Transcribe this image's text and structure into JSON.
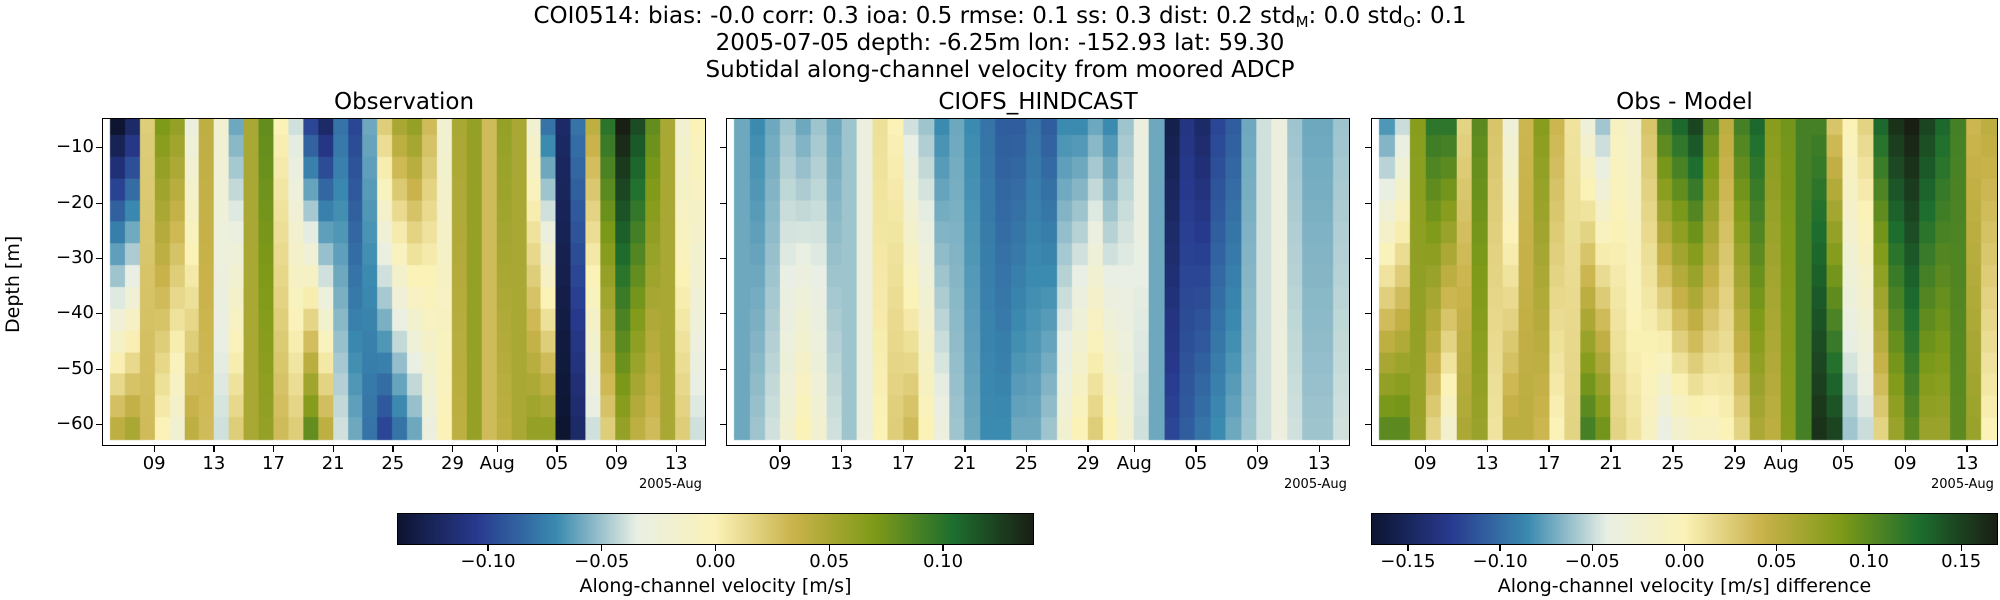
{
  "figure": {
    "title_station": "COI0514: bias: -0.0  corr: 0.3  ioa: 0.5  rmse: 0.1  ss: 0.3  dist: 0.2  std",
    "title_std_m_sub": "M",
    "title_std_m_val": ": 0.0  std",
    "title_std_o_sub": "O",
    "title_std_o_val": ": 0.1",
    "title_line2": "2005-07-05 depth: -6.25m lon: -152.93 lat: 59.30",
    "title_line3": "Subtidal along-channel velocity from moored ADCP"
  },
  "ylabel": "Depth [m]",
  "x_offset_label": "2005-Aug",
  "colors": {
    "cmap": [
      "#0d1531",
      "#283a8f",
      "#3b8bb0",
      "#e9efe4",
      "#fbf2b8",
      "#c9b24a",
      "#7f9a18",
      "#1d6e2f",
      "#1a1f14"
    ]
  },
  "chart_data": [
    {
      "type": "heatmap",
      "title": "Observation",
      "x_ticks": [
        "09",
        "13",
        "17",
        "21",
        "25",
        "29",
        "Aug",
        "05",
        "09",
        "13"
      ],
      "y_ticks": [
        "−10",
        "−20",
        "−30",
        "−40",
        "−50",
        "−60"
      ],
      "y_tick_values": [
        -10,
        -20,
        -30,
        -40,
        -50,
        -60
      ],
      "x_range": [
        "2005-07-06",
        "2005-08-14"
      ],
      "ylim": [
        -65,
        -5
      ],
      "clim": [
        -0.14,
        0.14
      ],
      "x_dates": [
        "07-06",
        "07-07",
        "07-08",
        "07-09",
        "07-10",
        "07-11",
        "07-12",
        "07-13",
        "07-14",
        "07-15",
        "07-16",
        "07-17",
        "07-18",
        "07-19",
        "07-20",
        "07-21",
        "07-22",
        "07-23",
        "07-24",
        "07-25",
        "07-26",
        "07-27",
        "07-28",
        "07-29",
        "07-30",
        "07-31",
        "08-01",
        "08-02",
        "08-03",
        "08-04",
        "08-05",
        "08-06",
        "08-07",
        "08-08",
        "08-09",
        "08-10",
        "08-11",
        "08-12",
        "08-13",
        "08-14"
      ],
      "depths": [
        -6,
        -10,
        -14,
        -18,
        -22,
        -26,
        -30,
        -34,
        -38,
        -42,
        -46,
        -50,
        -54,
        -58,
        -62
      ],
      "surface_values": [
        -0.14,
        -0.12,
        0.02,
        0.07,
        0.06,
        -0.03,
        0.04,
        -0.02,
        -0.06,
        0.05,
        0.08,
        0.0,
        -0.04,
        -0.1,
        -0.12,
        -0.08,
        -0.1,
        -0.06,
        0.02,
        0.05,
        0.06,
        0.03,
        -0.02,
        0.05,
        0.06,
        0.03,
        0.06,
        0.05,
        -0.02,
        -0.08,
        -0.12,
        -0.08,
        0.04,
        0.1,
        0.14,
        0.12,
        0.08,
        0.05,
        -0.02,
        0.0
      ],
      "bottom_values": [
        0.04,
        0.05,
        0.03,
        0.0,
        -0.02,
        0.04,
        0.03,
        -0.04,
        0.02,
        0.05,
        0.06,
        0.03,
        0.02,
        0.08,
        0.04,
        -0.04,
        -0.06,
        -0.08,
        -0.1,
        -0.08,
        -0.06,
        -0.03,
        0.0,
        0.04,
        0.06,
        0.03,
        0.04,
        0.05,
        0.06,
        0.06,
        -0.14,
        -0.12,
        -0.04,
        0.02,
        0.06,
        0.04,
        0.03,
        0.05,
        0.02,
        -0.04
      ]
    },
    {
      "type": "heatmap",
      "title": "CIOFS_HINDCAST",
      "x_ticks": [
        "09",
        "13",
        "17",
        "21",
        "25",
        "29",
        "Aug",
        "05",
        "09",
        "13"
      ],
      "x_range": [
        "2005-07-06",
        "2005-08-14"
      ],
      "ylim": [
        -65,
        -5
      ],
      "clim": [
        -0.14,
        0.14
      ],
      "x_dates": [
        "07-06",
        "07-07",
        "07-08",
        "07-09",
        "07-10",
        "07-11",
        "07-12",
        "07-13",
        "07-14",
        "07-15",
        "07-16",
        "07-17",
        "07-18",
        "07-19",
        "07-20",
        "07-21",
        "07-22",
        "07-23",
        "07-24",
        "07-25",
        "07-26",
        "07-27",
        "07-28",
        "07-29",
        "07-30",
        "07-31",
        "08-01",
        "08-02",
        "08-03",
        "08-04",
        "08-05",
        "08-06",
        "08-07",
        "08-08",
        "08-09",
        "08-10",
        "08-11",
        "08-12",
        "08-13",
        "08-14"
      ],
      "depths": [
        -6,
        -10,
        -14,
        -18,
        -22,
        -26,
        -30,
        -34,
        -38,
        -42,
        -46,
        -50,
        -54,
        -58,
        -62
      ],
      "surface_values": [
        -0.06,
        -0.07,
        -0.06,
        -0.05,
        -0.06,
        -0.05,
        -0.06,
        -0.05,
        -0.03,
        0.01,
        0.0,
        -0.04,
        -0.05,
        -0.07,
        -0.06,
        -0.07,
        -0.08,
        -0.09,
        -0.09,
        -0.08,
        -0.09,
        -0.07,
        -0.07,
        -0.06,
        -0.07,
        -0.05,
        -0.03,
        -0.06,
        -0.13,
        -0.11,
        -0.12,
        -0.1,
        -0.09,
        -0.06,
        -0.04,
        -0.03,
        -0.05,
        -0.06,
        -0.06,
        -0.05
      ],
      "bottom_values": [
        -0.06,
        -0.05,
        -0.04,
        -0.02,
        0.0,
        -0.02,
        -0.04,
        -0.05,
        -0.03,
        0.0,
        0.02,
        0.03,
        0.0,
        -0.03,
        -0.05,
        -0.06,
        -0.07,
        -0.07,
        -0.06,
        -0.06,
        -0.05,
        -0.02,
        0.0,
        0.02,
        0.0,
        -0.02,
        -0.04,
        -0.06,
        -0.1,
        -0.09,
        -0.08,
        -0.07,
        -0.06,
        -0.05,
        -0.04,
        -0.03,
        -0.04,
        -0.05,
        -0.05,
        -0.04
      ]
    },
    {
      "type": "heatmap",
      "title": "Obs - Model",
      "x_ticks": [
        "09",
        "13",
        "17",
        "21",
        "25",
        "29",
        "Aug",
        "05",
        "09",
        "13"
      ],
      "x_range": [
        "2005-07-06",
        "2005-08-14"
      ],
      "ylim": [
        -65,
        -5
      ],
      "clim": [
        -0.17,
        0.17
      ],
      "x_dates": [
        "07-06",
        "07-07",
        "07-08",
        "07-09",
        "07-10",
        "07-11",
        "07-12",
        "07-13",
        "07-14",
        "07-15",
        "07-16",
        "07-17",
        "07-18",
        "07-19",
        "07-20",
        "07-21",
        "07-22",
        "07-23",
        "07-24",
        "07-25",
        "07-26",
        "07-27",
        "07-28",
        "07-29",
        "07-30",
        "07-31",
        "08-01",
        "08-02",
        "08-03",
        "08-04",
        "08-05",
        "08-06",
        "08-07",
        "08-08",
        "08-09",
        "08-10",
        "08-11",
        "08-12",
        "08-13",
        "08-14"
      ],
      "depths": [
        -6,
        -10,
        -14,
        -18,
        -22,
        -26,
        -30,
        -34,
        -38,
        -42,
        -46,
        -50,
        -54,
        -58,
        -62
      ],
      "surface_values": [
        -0.08,
        -0.05,
        0.08,
        0.12,
        0.12,
        0.02,
        0.1,
        0.03,
        -0.03,
        0.04,
        0.08,
        0.04,
        0.01,
        -0.03,
        -0.06,
        -0.01,
        -0.02,
        0.03,
        0.11,
        0.13,
        0.15,
        0.1,
        0.05,
        0.11,
        0.13,
        0.08,
        0.09,
        0.11,
        0.11,
        0.03,
        0.0,
        0.02,
        0.13,
        0.16,
        0.17,
        0.15,
        0.13,
        0.11,
        0.04,
        0.05
      ],
      "bottom_values": [
        0.1,
        0.1,
        0.07,
        0.02,
        -0.02,
        0.06,
        0.07,
        0.01,
        0.05,
        0.05,
        0.04,
        0.0,
        0.02,
        0.11,
        0.09,
        0.02,
        0.01,
        -0.01,
        -0.04,
        -0.02,
        -0.01,
        -0.01,
        0.0,
        0.02,
        0.06,
        0.05,
        0.08,
        0.11,
        0.16,
        0.15,
        -0.06,
        -0.05,
        0.02,
        0.07,
        0.1,
        0.07,
        0.07,
        0.1,
        0.07,
        0.0
      ]
    }
  ],
  "colorbars": [
    {
      "label": "Along-channel velocity [m/s]",
      "ticks": [
        "−0.10",
        "−0.05",
        "0.00",
        "0.05",
        "0.10"
      ],
      "tick_values": [
        -0.1,
        -0.05,
        0.0,
        0.05,
        0.1
      ],
      "clim": [
        -0.14,
        0.14
      ]
    },
    {
      "label": "Along-channel velocity [m/s] difference",
      "ticks": [
        "−0.15",
        "−0.10",
        "−0.05",
        "0.00",
        "0.05",
        "0.10",
        "0.15"
      ],
      "tick_values": [
        -0.15,
        -0.1,
        -0.05,
        0.0,
        0.05,
        0.1,
        0.15
      ],
      "clim": [
        -0.17,
        0.17
      ]
    }
  ]
}
